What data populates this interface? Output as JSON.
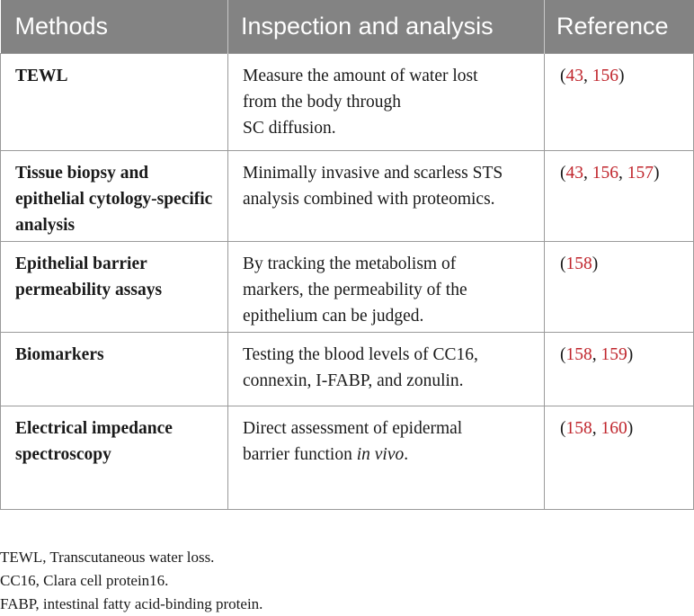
{
  "table": {
    "headers": [
      "Methods",
      "Inspection and analysis",
      "Reference"
    ],
    "rows": [
      {
        "method": "TEWL",
        "analysis_lines": [
          "Measure the amount of water lost",
          "from the body through",
          "SC diffusion."
        ],
        "refs": [
          "43",
          "156"
        ]
      },
      {
        "method": "Tissue biopsy and epithelial cytology-specific analysis",
        "analysis_lines": [
          "Minimally invasive and scarless STS",
          "analysis combined with proteomics."
        ],
        "refs": [
          "43",
          "156",
          "157"
        ]
      },
      {
        "method": "Epithelial barrier permeability assays",
        "analysis_lines": [
          "By tracking the metabolism of",
          "markers, the permeability of the",
          "epithelium can be judged."
        ],
        "refs": [
          "158"
        ]
      },
      {
        "method": "Biomarkers",
        "analysis_lines": [
          "Testing the blood levels of CC16,",
          "connexin, I-FABP, and zonulin."
        ],
        "refs": [
          "158",
          "159"
        ]
      },
      {
        "method": "Electrical impedance spectroscopy",
        "analysis_lines": [
          "Direct assessment of epidermal",
          "barrier function "
        ],
        "analysis_italic_tail": "in vivo",
        "analysis_tail_end": ".",
        "refs": [
          "158",
          "160"
        ]
      }
    ]
  },
  "notes": [
    "TEWL, Transcutaneous water loss.",
    "CC16, Clara cell protein16.",
    "FABP, intestinal fatty acid-binding protein."
  ],
  "colors": {
    "header_bg": "#838383",
    "reference_link": "#c0262d"
  }
}
